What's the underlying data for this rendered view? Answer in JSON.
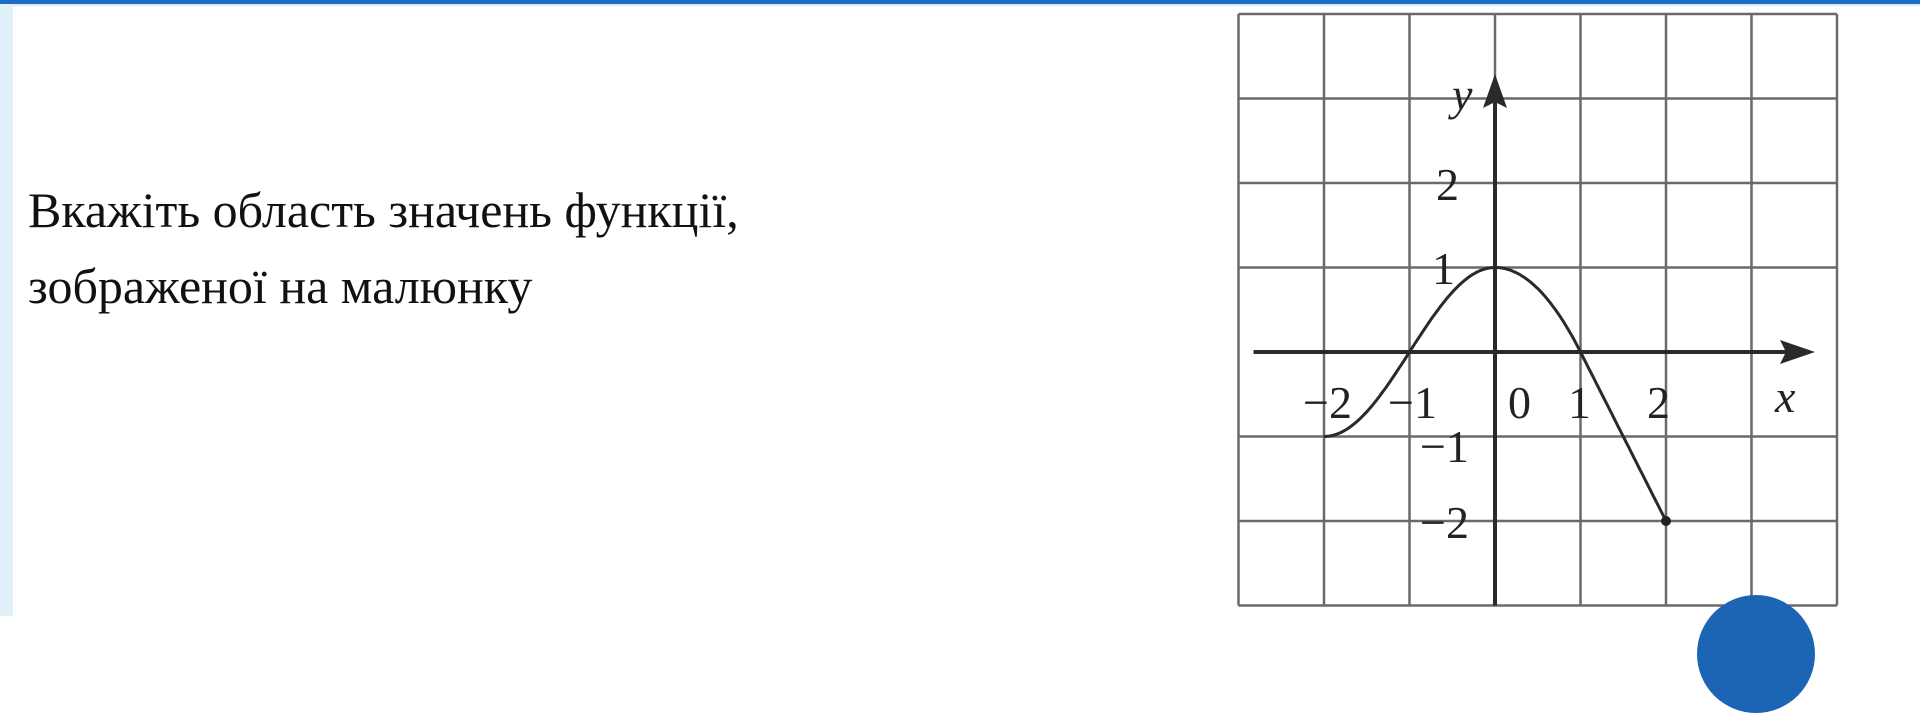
{
  "question": {
    "line1": "Вкажіть область значень функції,",
    "line2": "зображеної на малюнку"
  },
  "colors": {
    "accent": "#1c6cbf",
    "side_strip": "#e1f1f9",
    "button": "#1c64b4"
  },
  "chart_data": {
    "type": "line",
    "title": "",
    "xlabel": "x",
    "ylabel": "y",
    "xlim": [
      -3,
      4
    ],
    "ylim": [
      -3,
      4
    ],
    "grid": true,
    "x_tick_labels": [
      "−2",
      "−1",
      "0",
      "1",
      "2"
    ],
    "y_tick_labels": [
      "2",
      "1",
      "−1",
      "−2"
    ],
    "series": [
      {
        "points": [
          [
            -2,
            -1
          ],
          [
            -1,
            0
          ],
          [
            0,
            1
          ],
          [
            1,
            0
          ],
          [
            2,
            -2
          ]
        ],
        "end_marker": "dot"
      }
    ]
  }
}
